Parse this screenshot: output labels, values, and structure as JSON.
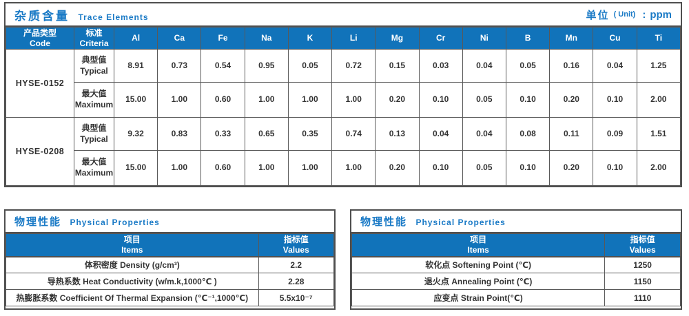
{
  "colors": {
    "header_blue": "#1173ba",
    "title_blue": "#1a7ac6",
    "border_dark": "#4f4f4f",
    "grid": "#595959",
    "text": "#333333"
  },
  "trace": {
    "title_zh": "杂质含量",
    "title_en": "Trace Elements",
    "unit_zh": "单位",
    "unit_en": "( Unit)",
    "unit_colon": ":",
    "unit_value": "ppm",
    "header": {
      "code_zh": "产品类型",
      "code_en": "Code",
      "criteria_zh": "标准",
      "criteria_en": "Criteria"
    },
    "elements": [
      "Al",
      "Ca",
      "Fe",
      "Na",
      "K",
      "Li",
      "Mg",
      "Cr",
      "Ni",
      "B",
      "Mn",
      "Cu",
      "Ti"
    ],
    "groups": [
      {
        "code": "HYSE-0152",
        "rows": [
          {
            "criteria_zh": "典型值",
            "criteria_en": "Typical",
            "values": [
              "8.91",
              "0.73",
              "0.54",
              "0.95",
              "0.05",
              "0.72",
              "0.15",
              "0.03",
              "0.04",
              "0.05",
              "0.16",
              "0.04",
              "1.25"
            ]
          },
          {
            "criteria_zh": "最大值",
            "criteria_en": "Maximum",
            "values": [
              "15.00",
              "1.00",
              "0.60",
              "1.00",
              "1.00",
              "1.00",
              "0.20",
              "0.10",
              "0.05",
              "0.10",
              "0.20",
              "0.10",
              "2.00"
            ]
          }
        ]
      },
      {
        "code": "HYSE-0208",
        "rows": [
          {
            "criteria_zh": "典型值",
            "criteria_en": "Typical",
            "values": [
              "9.32",
              "0.83",
              "0.33",
              "0.65",
              "0.35",
              "0.74",
              "0.13",
              "0.04",
              "0.04",
              "0.08",
              "0.11",
              "0.09",
              "1.51"
            ]
          },
          {
            "criteria_zh": "最大值",
            "criteria_en": "Maximum",
            "values": [
              "15.00",
              "1.00",
              "0.60",
              "1.00",
              "1.00",
              "1.00",
              "0.20",
              "0.10",
              "0.05",
              "0.10",
              "0.20",
              "0.10",
              "2.00"
            ]
          }
        ]
      }
    ]
  },
  "physical_left": {
    "title_zh": "物理性能",
    "title_en": "Physical Properties",
    "col_item_zh": "项目",
    "col_item_en": "Items",
    "col_value_zh": "指标值",
    "col_value_en": "Values",
    "rows": [
      {
        "item": "体积密度 Density (g/cm³)",
        "value": "2.2"
      },
      {
        "item": "导热系数 Heat Conductivity (w/m.k,1000℃ )",
        "value": "2.28"
      },
      {
        "item": "热膨胀系数 Coefficient Of Thermal Expansion (℃⁻¹,1000℃)",
        "value": "5.5x10⁻⁷"
      }
    ]
  },
  "physical_right": {
    "title_zh": "物理性能",
    "title_en": "Physical Properties",
    "col_item_zh": "项目",
    "col_item_en": "Items",
    "col_value_zh": "指标值",
    "col_value_en": "Values",
    "rows": [
      {
        "item": "软化点 Softening Point (℃)",
        "value": "1250"
      },
      {
        "item": "退火点 Annealing Point (℃)",
        "value": "1150"
      },
      {
        "item": "应变点 Strain Point(℃)",
        "value": "1110"
      }
    ]
  }
}
